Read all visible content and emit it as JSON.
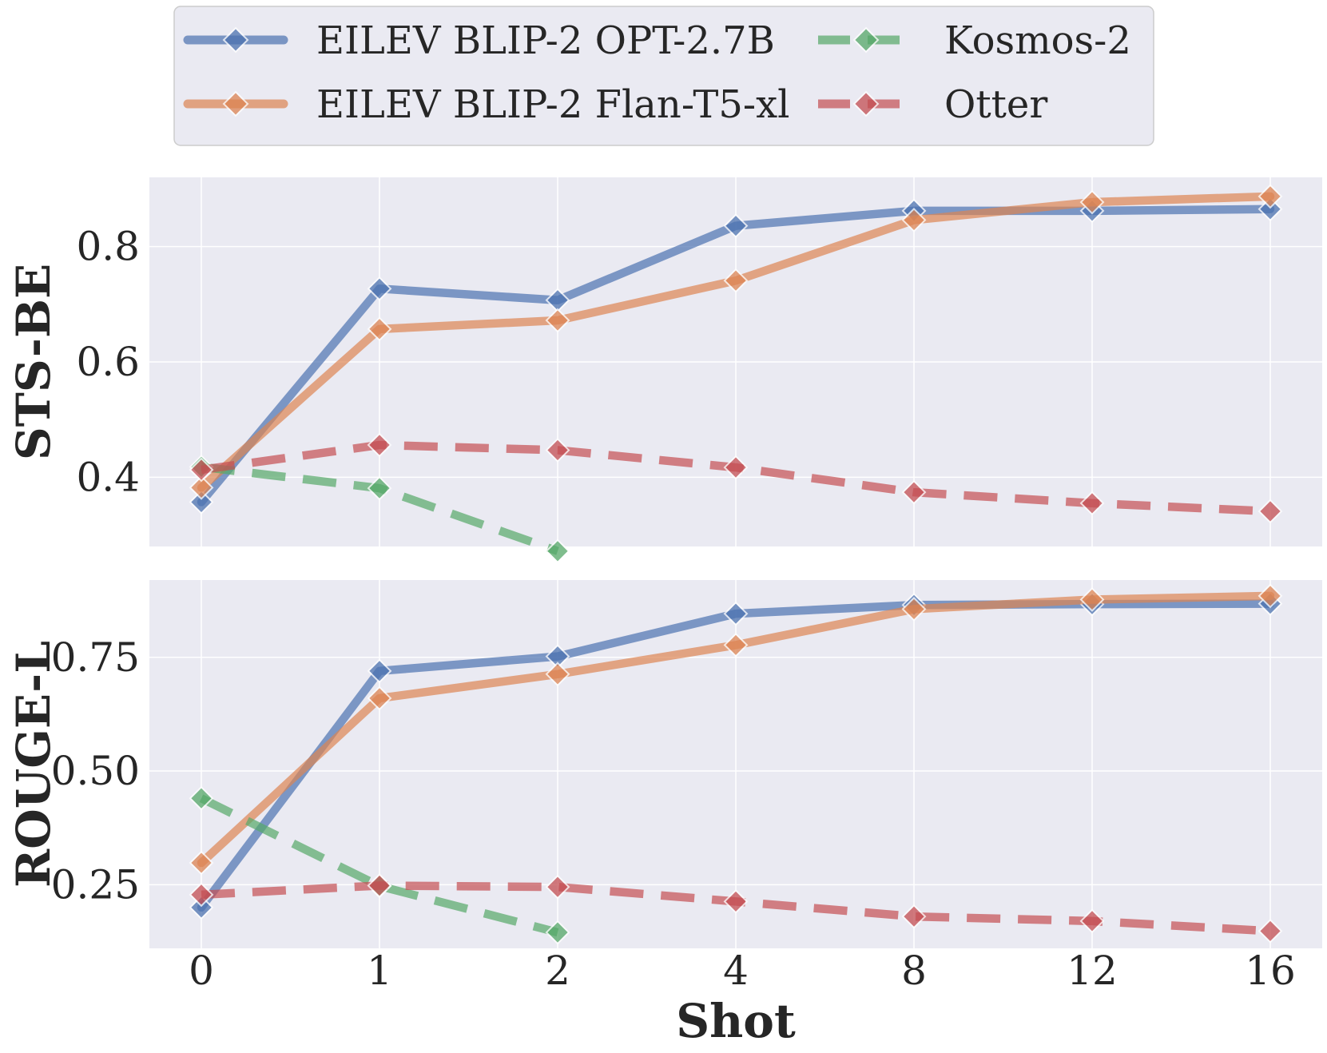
{
  "chart_data": {
    "type": "line",
    "x_categories": [
      "0",
      "1",
      "2",
      "4",
      "8",
      "12",
      "16"
    ],
    "xlabel": "Shot",
    "legend": {
      "placement": "top-center",
      "columns": 2
    },
    "series_styles": [
      {
        "name": "EILEV BLIP-2 OPT-2.7B",
        "color": "#4c72b0",
        "dashed": false,
        "marker": "diamond"
      },
      {
        "name": "EILEV BLIP-2 Flan-T5-xl",
        "color": "#dd8452",
        "dashed": false,
        "marker": "diamond"
      },
      {
        "name": "Kosmos-2",
        "color": "#55a868",
        "dashed": true,
        "marker": "diamond"
      },
      {
        "name": "Otter",
        "color": "#c44e52",
        "dashed": true,
        "marker": "diamond"
      }
    ],
    "panels": [
      {
        "ylabel": "STS-BE",
        "ylim": [
          0.28,
          0.92
        ],
        "yticks": [
          0.4,
          0.6,
          0.8
        ],
        "ytick_labels": [
          "0.4",
          "0.6",
          "0.8"
        ],
        "grid": true,
        "series": [
          {
            "name": "EILEV BLIP-2 OPT-2.7B",
            "values": [
              0.357,
              0.727,
              0.707,
              0.836,
              0.862,
              0.862,
              0.865
            ]
          },
          {
            "name": "EILEV BLIP-2 Flan-T5-xl",
            "values": [
              0.382,
              0.657,
              0.672,
              0.741,
              0.846,
              0.877,
              0.887
            ]
          },
          {
            "name": "Kosmos-2",
            "values": [
              0.418,
              0.381,
              0.272,
              null,
              null,
              null,
              null
            ]
          },
          {
            "name": "Otter",
            "values": [
              0.413,
              0.456,
              0.447,
              0.417,
              0.374,
              0.355,
              0.341
            ]
          }
        ]
      },
      {
        "ylabel": "ROUGE-L",
        "ylim": [
          0.11,
          0.92
        ],
        "yticks": [
          0.25,
          0.5,
          0.75
        ],
        "ytick_labels": [
          "0.25",
          "0.50",
          "0.75"
        ],
        "grid": true,
        "series": [
          {
            "name": "EILEV BLIP-2 OPT-2.7B",
            "values": [
              0.2,
              0.72,
              0.752,
              0.846,
              0.865,
              0.867,
              0.868
            ]
          },
          {
            "name": "EILEV BLIP-2 Flan-T5-xl",
            "values": [
              0.298,
              0.66,
              0.713,
              0.777,
              0.856,
              0.877,
              0.885
            ]
          },
          {
            "name": "Kosmos-2",
            "values": [
              0.44,
              0.247,
              0.145,
              null,
              null,
              null,
              null
            ]
          },
          {
            "name": "Otter",
            "values": [
              0.228,
              0.248,
              0.245,
              0.213,
              0.18,
              0.17,
              0.148
            ]
          }
        ]
      }
    ]
  }
}
